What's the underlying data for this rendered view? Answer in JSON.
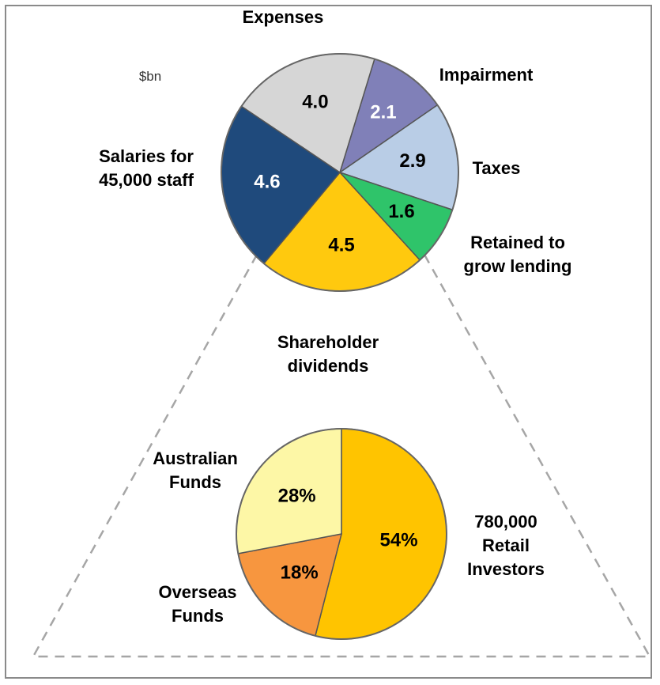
{
  "chart_data": [
    {
      "type": "pie",
      "subtitle": "$bn",
      "categories": [
        "Impairment",
        "Taxes",
        "Retained to\ngrow lending",
        "Shareholder\ndividends",
        "Salaries for\n45,000 staff",
        "Expenses"
      ],
      "values": [
        2.1,
        2.9,
        1.6,
        4.5,
        4.6,
        4.0
      ],
      "value_labels": [
        "2.1",
        "2.9",
        "1.6",
        "4.5",
        "4.6",
        "4.0"
      ],
      "colors": [
        "#8080b8",
        "#b9cde6",
        "#2fc46a",
        "#ffc90e",
        "#1f4a7c",
        "#d6d6d6"
      ]
    },
    {
      "type": "pie",
      "categories": [
        "780,000\nRetail\nInvestors",
        "Overseas\nFunds",
        "Australian\nFunds"
      ],
      "values": [
        54,
        18,
        28
      ],
      "value_labels": [
        "54%",
        "18%",
        "28%"
      ],
      "colors": [
        "#ffc400",
        "#f7963f",
        "#fdf7a6"
      ]
    }
  ]
}
